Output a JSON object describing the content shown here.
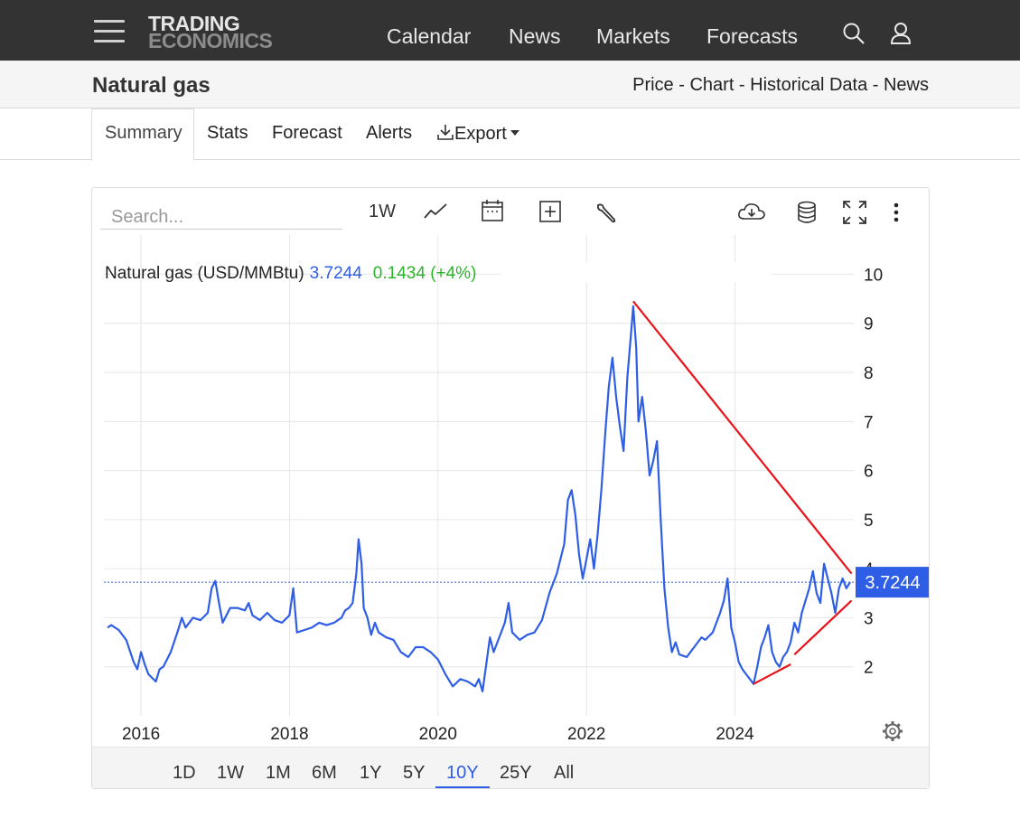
{
  "topnav": {
    "logo_line1": "TRADING",
    "logo_line2": "ECONOMICS",
    "links": [
      "Calendar",
      "News",
      "Markets",
      "Forecasts"
    ]
  },
  "header": {
    "title": "Natural gas",
    "crumbs": [
      "Price",
      "Chart",
      "Historical Data",
      "News"
    ],
    "separator": " - "
  },
  "tabs": [
    "Summary",
    "Stats",
    "Forecast",
    "Alerts",
    "Export"
  ],
  "toolbar": {
    "search_placeholder": "Search...",
    "interval": "1W"
  },
  "legend": {
    "name": "Natural gas (USD/MMBtu)",
    "value": "3.7244",
    "change": "0.1434 (+4%)"
  },
  "price_tag": "3.7244",
  "ranges": [
    "1D",
    "1W",
    "1M",
    "6M",
    "1Y",
    "5Y",
    "10Y",
    "25Y",
    "All"
  ],
  "active_range": "10Y",
  "colors": {
    "line": "#2f5ee6",
    "positive": "#2bb52b",
    "trendline": "#e8141c",
    "topbar": "#333333"
  },
  "chart_data": {
    "type": "line",
    "title": "Natural gas (USD/MMBtu)",
    "x_ticks": [
      2016,
      2018,
      2020,
      2022,
      2024
    ],
    "y_ticks": [
      2,
      3,
      4,
      5,
      6,
      7,
      8,
      9,
      10
    ],
    "xlim": [
      2015.5,
      2025.6
    ],
    "ylim": [
      1.0,
      10.8
    ],
    "last_value": 3.7244,
    "series": [
      {
        "name": "Natural gas",
        "points": [
          [
            2015.55,
            2.8
          ],
          [
            2015.6,
            2.85
          ],
          [
            2015.7,
            2.75
          ],
          [
            2015.8,
            2.55
          ],
          [
            2015.9,
            2.1
          ],
          [
            2015.95,
            1.95
          ],
          [
            2016.0,
            2.3
          ],
          [
            2016.05,
            2.05
          ],
          [
            2016.1,
            1.85
          ],
          [
            2016.2,
            1.7
          ],
          [
            2016.25,
            1.95
          ],
          [
            2016.3,
            2.0
          ],
          [
            2016.4,
            2.3
          ],
          [
            2016.5,
            2.75
          ],
          [
            2016.55,
            3.0
          ],
          [
            2016.6,
            2.8
          ],
          [
            2016.7,
            3.0
          ],
          [
            2016.8,
            2.95
          ],
          [
            2016.9,
            3.1
          ],
          [
            2016.95,
            3.6
          ],
          [
            2017.0,
            3.75
          ],
          [
            2017.05,
            3.3
          ],
          [
            2017.1,
            2.9
          ],
          [
            2017.2,
            3.2
          ],
          [
            2017.3,
            3.2
          ],
          [
            2017.4,
            3.15
          ],
          [
            2017.45,
            3.3
          ],
          [
            2017.5,
            3.05
          ],
          [
            2017.6,
            2.95
          ],
          [
            2017.7,
            3.1
          ],
          [
            2017.8,
            2.95
          ],
          [
            2017.9,
            2.9
          ],
          [
            2018.0,
            3.05
          ],
          [
            2018.05,
            3.6
          ],
          [
            2018.1,
            2.7
          ],
          [
            2018.2,
            2.75
          ],
          [
            2018.3,
            2.8
          ],
          [
            2018.4,
            2.9
          ],
          [
            2018.5,
            2.85
          ],
          [
            2018.6,
            2.9
          ],
          [
            2018.7,
            3.0
          ],
          [
            2018.75,
            3.15
          ],
          [
            2018.8,
            3.2
          ],
          [
            2018.85,
            3.3
          ],
          [
            2018.9,
            3.9
          ],
          [
            2018.93,
            4.6
          ],
          [
            2018.97,
            4.1
          ],
          [
            2019.0,
            3.2
          ],
          [
            2019.05,
            3.0
          ],
          [
            2019.1,
            2.65
          ],
          [
            2019.15,
            2.9
          ],
          [
            2019.2,
            2.7
          ],
          [
            2019.3,
            2.6
          ],
          [
            2019.4,
            2.55
          ],
          [
            2019.5,
            2.3
          ],
          [
            2019.6,
            2.2
          ],
          [
            2019.7,
            2.4
          ],
          [
            2019.8,
            2.4
          ],
          [
            2019.9,
            2.3
          ],
          [
            2020.0,
            2.15
          ],
          [
            2020.1,
            1.85
          ],
          [
            2020.2,
            1.6
          ],
          [
            2020.3,
            1.75
          ],
          [
            2020.4,
            1.7
          ],
          [
            2020.5,
            1.6
          ],
          [
            2020.55,
            1.75
          ],
          [
            2020.6,
            1.5
          ],
          [
            2020.65,
            2.05
          ],
          [
            2020.7,
            2.6
          ],
          [
            2020.75,
            2.3
          ],
          [
            2020.8,
            2.5
          ],
          [
            2020.85,
            2.7
          ],
          [
            2020.9,
            2.9
          ],
          [
            2020.95,
            3.3
          ],
          [
            2021.0,
            2.7
          ],
          [
            2021.1,
            2.55
          ],
          [
            2021.2,
            2.65
          ],
          [
            2021.3,
            2.7
          ],
          [
            2021.4,
            2.95
          ],
          [
            2021.5,
            3.5
          ],
          [
            2021.55,
            3.7
          ],
          [
            2021.6,
            3.9
          ],
          [
            2021.7,
            4.5
          ],
          [
            2021.75,
            5.4
          ],
          [
            2021.8,
            5.6
          ],
          [
            2021.85,
            5.1
          ],
          [
            2021.9,
            4.3
          ],
          [
            2021.95,
            3.8
          ],
          [
            2022.0,
            4.2
          ],
          [
            2022.05,
            4.6
          ],
          [
            2022.1,
            4.0
          ],
          [
            2022.15,
            4.7
          ],
          [
            2022.2,
            5.6
          ],
          [
            2022.25,
            6.7
          ],
          [
            2022.3,
            7.7
          ],
          [
            2022.35,
            8.3
          ],
          [
            2022.4,
            7.5
          ],
          [
            2022.45,
            6.9
          ],
          [
            2022.5,
            6.4
          ],
          [
            2022.55,
            7.9
          ],
          [
            2022.6,
            8.8
          ],
          [
            2022.63,
            9.35
          ],
          [
            2022.67,
            8.5
          ],
          [
            2022.7,
            7.0
          ],
          [
            2022.75,
            7.5
          ],
          [
            2022.8,
            6.8
          ],
          [
            2022.85,
            5.9
          ],
          [
            2022.9,
            6.2
          ],
          [
            2022.95,
            6.6
          ],
          [
            2023.0,
            5.0
          ],
          [
            2023.05,
            3.6
          ],
          [
            2023.1,
            2.8
          ],
          [
            2023.15,
            2.3
          ],
          [
            2023.2,
            2.5
          ],
          [
            2023.25,
            2.25
          ],
          [
            2023.35,
            2.2
          ],
          [
            2023.45,
            2.4
          ],
          [
            2023.55,
            2.6
          ],
          [
            2023.6,
            2.55
          ],
          [
            2023.7,
            2.7
          ],
          [
            2023.8,
            3.1
          ],
          [
            2023.85,
            3.35
          ],
          [
            2023.9,
            3.8
          ],
          [
            2023.95,
            2.8
          ],
          [
            2024.0,
            2.5
          ],
          [
            2024.05,
            2.1
          ],
          [
            2024.1,
            1.95
          ],
          [
            2024.15,
            1.85
          ],
          [
            2024.2,
            1.75
          ],
          [
            2024.25,
            1.65
          ],
          [
            2024.3,
            2.0
          ],
          [
            2024.35,
            2.4
          ],
          [
            2024.4,
            2.6
          ],
          [
            2024.45,
            2.85
          ],
          [
            2024.5,
            2.3
          ],
          [
            2024.55,
            2.1
          ],
          [
            2024.6,
            2.0
          ],
          [
            2024.65,
            2.2
          ],
          [
            2024.7,
            2.3
          ],
          [
            2024.75,
            2.5
          ],
          [
            2024.8,
            2.9
          ],
          [
            2024.85,
            2.7
          ],
          [
            2024.9,
            3.1
          ],
          [
            2024.95,
            3.35
          ],
          [
            2025.0,
            3.6
          ],
          [
            2025.05,
            3.95
          ],
          [
            2025.1,
            3.5
          ],
          [
            2025.15,
            3.3
          ],
          [
            2025.2,
            4.1
          ],
          [
            2025.25,
            3.8
          ],
          [
            2025.3,
            3.5
          ],
          [
            2025.35,
            3.1
          ],
          [
            2025.4,
            3.6
          ],
          [
            2025.45,
            3.8
          ],
          [
            2025.5,
            3.6
          ],
          [
            2025.55,
            3.7244
          ]
        ]
      }
    ],
    "annotations": {
      "trendlines": [
        [
          [
            2022.63,
            9.45
          ],
          [
            2025.57,
            3.9
          ]
        ],
        [
          [
            2024.25,
            1.65
          ],
          [
            2024.75,
            2.05
          ]
        ],
        [
          [
            2024.8,
            2.25
          ],
          [
            2025.57,
            3.35
          ]
        ]
      ]
    },
    "grid": true
  }
}
